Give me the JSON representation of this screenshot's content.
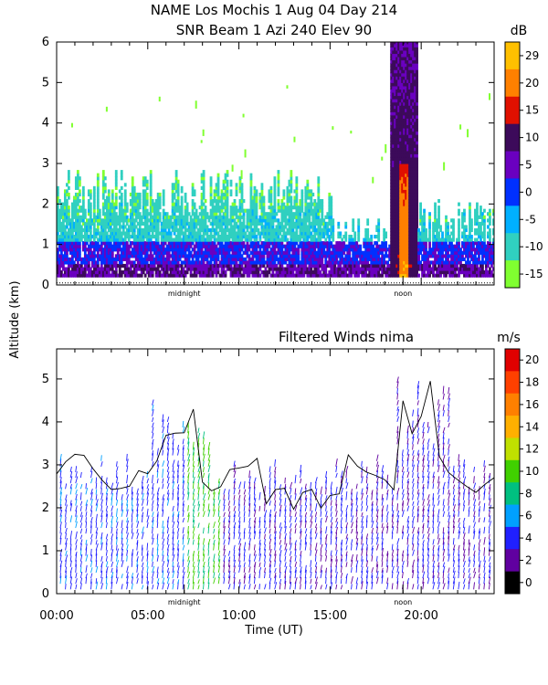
{
  "header": {
    "title_line1": "NAME Los Mochis     1 Aug 04 Day 214",
    "title_line2": "SNR Beam 1 Azi 240 Elev 90"
  },
  "shared_ylabel": "Altitude (km)",
  "chart_data": [
    {
      "type": "heatmap",
      "title": "SNR Beam 1 Azi 240 Elev 90",
      "ylabel": "Altitude (km)",
      "ylim": [
        0,
        6
      ],
      "yticks": [
        "0",
        "1",
        "2",
        "3",
        "4",
        "5",
        "6"
      ],
      "xlim_hours": [
        0,
        24
      ],
      "x_markers": [
        {
          "label": "midnight",
          "hour": 7.0
        },
        {
          "label": "noon",
          "hour": 19.0
        }
      ],
      "colorbar": {
        "unit": "dB",
        "ticks": [
          "29",
          "20",
          "15",
          "10",
          "5",
          "0",
          "-5",
          "-10",
          "-15"
        ],
        "colors": [
          "#ffc000",
          "#ff8000",
          "#e01000",
          "#3c0a5a",
          "#6a00c0",
          "#0030ff",
          "#00b0ff",
          "#30d0c0",
          "#80ff30"
        ]
      },
      "features": [
        {
          "name": "surface band",
          "hours": [
            0,
            24
          ],
          "alt_km": [
            0.2,
            1.0
          ],
          "snr_db": 5
        },
        {
          "name": "upper boundary layer",
          "hours": [
            0,
            15
          ],
          "alt_km": [
            1.0,
            2.5
          ],
          "snr_db": -12
        },
        {
          "name": "noon plume",
          "hours": [
            18.2,
            19.8
          ],
          "alt_km": [
            0.2,
            6.0
          ],
          "snr_db": 10
        },
        {
          "name": "noon core",
          "hours": [
            18.7,
            19.3
          ],
          "alt_km": [
            0.2,
            3.0
          ],
          "snr_db": 25
        }
      ]
    },
    {
      "type": "scatter",
      "title": "Filtered Winds nima",
      "ylabel": "Altitude (km)",
      "xlabel": "Time (UT)",
      "ylim": [
        0,
        5.7
      ],
      "yticks": [
        "0",
        "1",
        "2",
        "3",
        "4",
        "5"
      ],
      "xlim_hours": [
        0,
        24
      ],
      "xticks": [
        "00:00",
        "05:00",
        "10:00",
        "15:00",
        "20:00"
      ],
      "x_markers": [
        {
          "label": "midnight",
          "hour": 7.0
        },
        {
          "label": "noon",
          "hour": 19.0
        }
      ],
      "colorbar": {
        "unit": "m/s",
        "ticks": [
          "20",
          "18",
          "16",
          "14",
          "12",
          "10",
          "8",
          "6",
          "4",
          "2",
          "0"
        ],
        "colors": [
          "#e00000",
          "#ff4000",
          "#ff8000",
          "#ffb000",
          "#c0e000",
          "#40d000",
          "#00c080",
          "#00a0ff",
          "#2020ff",
          "#6000a0",
          "#000000"
        ]
      },
      "wind_speed_mps": [
        {
          "hours": [
            0,
            7
          ],
          "speed": 4
        },
        {
          "hours": [
            7,
            9
          ],
          "speed": 9
        },
        {
          "hours": [
            9,
            24
          ],
          "speed": 3
        }
      ]
    }
  ]
}
